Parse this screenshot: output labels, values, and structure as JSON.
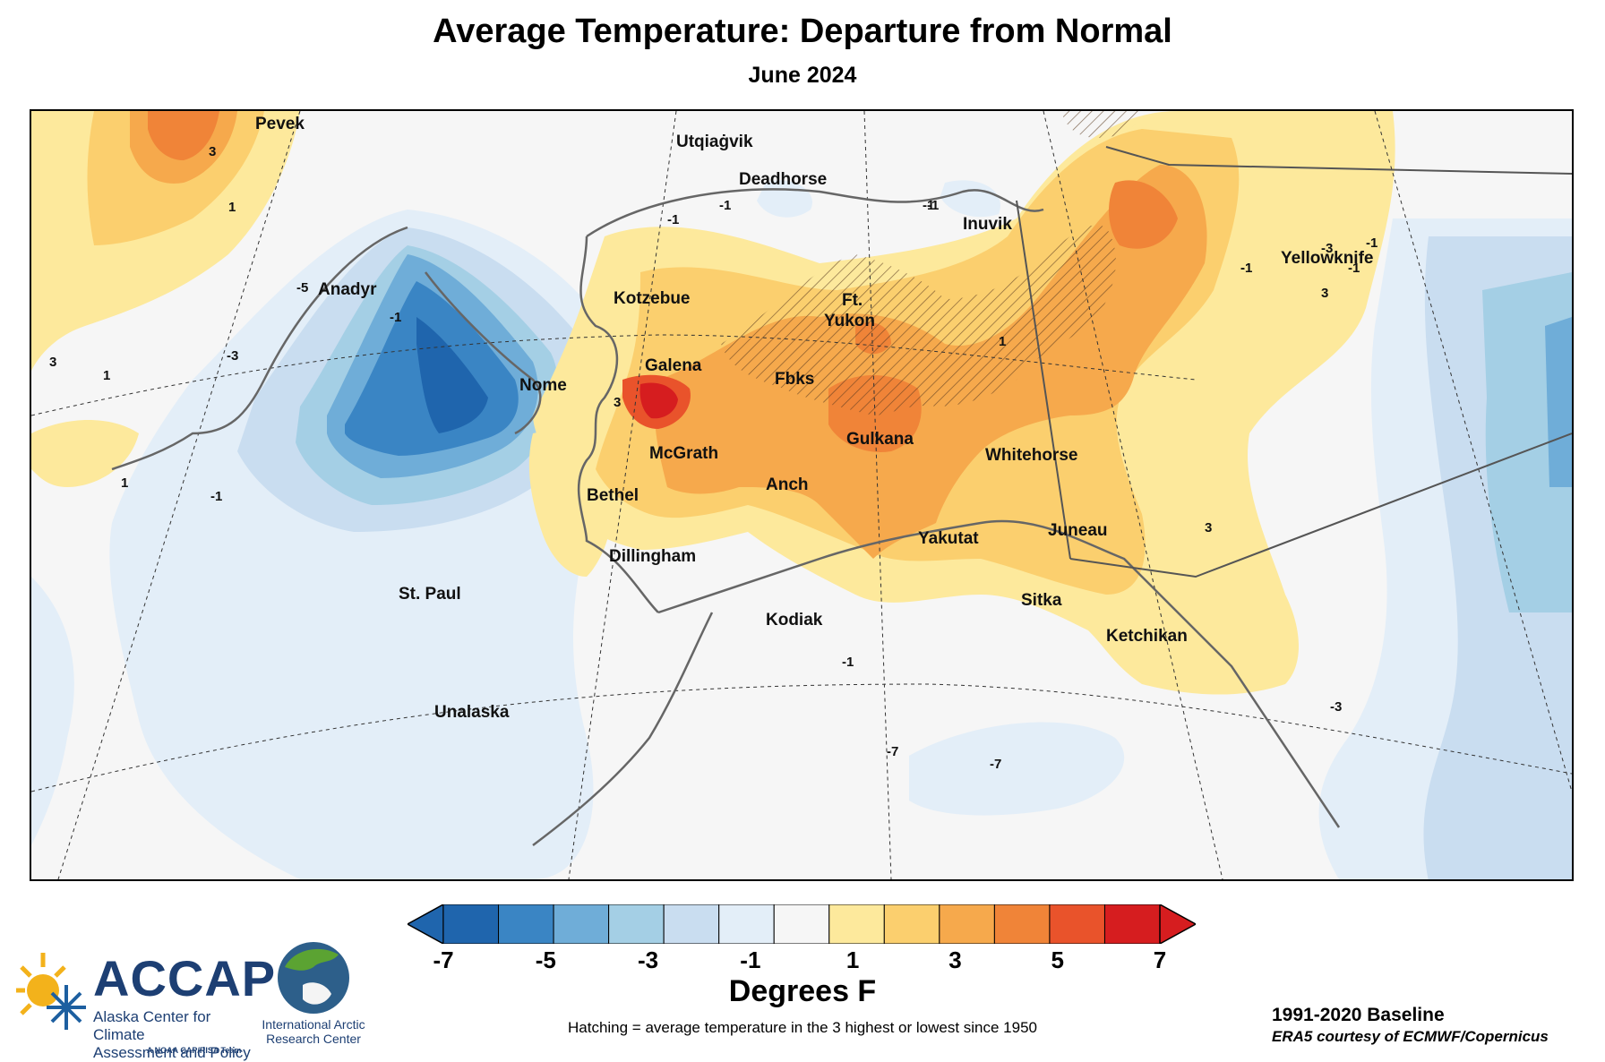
{
  "header": {
    "title": "Average Temperature: Departure from Normal",
    "subtitle": "June 2024"
  },
  "map": {
    "cities": [
      {
        "name": "Pevek"
      },
      {
        "name": "Utqiaġvik"
      },
      {
        "name": "Deadhorse"
      },
      {
        "name": "Inuvik"
      },
      {
        "name": "Yellowknife"
      },
      {
        "name": "Anadyr"
      },
      {
        "name": "Kotzebue"
      },
      {
        "name": "Ft."
      },
      {
        "name": "Yukon"
      },
      {
        "name": "Nome"
      },
      {
        "name": "Galena"
      },
      {
        "name": "Fbks"
      },
      {
        "name": "Gulkana"
      },
      {
        "name": "McGrath"
      },
      {
        "name": "Whitehorse"
      },
      {
        "name": "Bethel"
      },
      {
        "name": "Anch"
      },
      {
        "name": "Yakutat"
      },
      {
        "name": "Juneau"
      },
      {
        "name": "Dillingham"
      },
      {
        "name": "St. Paul"
      },
      {
        "name": "Sitka"
      },
      {
        "name": "Kodiak"
      },
      {
        "name": "Ketchikan"
      },
      {
        "name": "Unalaska"
      }
    ],
    "contour_labels": [
      "3",
      "1",
      "-5",
      "-3",
      "-1",
      "3",
      "1",
      "-1",
      "-1",
      "-1",
      "-1",
      "-1",
      "-1",
      "3",
      "3",
      "1",
      "3",
      "-1",
      "-3",
      "-1",
      "-3",
      "-1",
      "-7",
      "-7",
      "-1",
      "1"
    ],
    "colors": {
      "neg7": "#1f65ad",
      "neg6": "#3a85c4",
      "neg4": "#6fadd8",
      "neg3": "#a4cfe5",
      "neg2": "#c9ddf0",
      "neg1": "#e3eef8",
      "neutral": "#f6f6f6",
      "pos1": "#fde99c",
      "pos2": "#fbcf6e",
      "pos3": "#f6a94c",
      "pos4": "#f08438",
      "pos5": "#e9532b",
      "pos7": "#d61d1f"
    }
  },
  "colorbar": {
    "ticks": [
      "-7",
      "-5",
      "-3",
      "-1",
      "1",
      "3",
      "5",
      "7"
    ],
    "colors": [
      "#1f65ad",
      "#3a85c4",
      "#6fadd8",
      "#a4cfe5",
      "#c9ddf0",
      "#e3eef8",
      "#f6f6f6",
      "#fde99c",
      "#fbcf6e",
      "#f6a94c",
      "#f08438",
      "#e9532b",
      "#d61d1f"
    ],
    "under_color": "#1f65ad",
    "over_color": "#d61d1f",
    "units": "Degrees F"
  },
  "footer": {
    "hatching_note": "Hatching = average temperature in the 3 highest or lowest since 1950",
    "baseline": "1991-2020 Baseline",
    "credit": "ERA5 courtesy of ECMWF/Copernicus"
  },
  "logos": {
    "accap_name": "ACCAP",
    "accap_line1": "Alaska Center for Climate",
    "accap_line2": "Assessment and Policy",
    "accap_tagline": "A NOAA CAP/RISA Team",
    "iarc_line1": "International Arctic",
    "iarc_line2": "Research Center"
  }
}
